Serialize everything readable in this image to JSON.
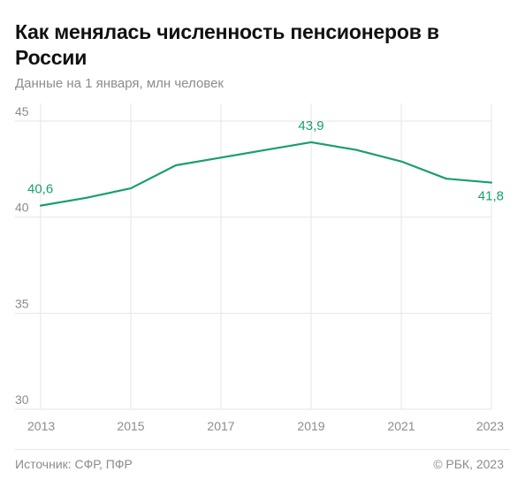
{
  "header": {
    "title": "Как менялась численность пенсионеров в России",
    "subtitle": "Данные на 1 января, млн человек"
  },
  "footer": {
    "source": "Источник: СФР, ПФР",
    "copyright": "© РБК, 2023"
  },
  "colors": {
    "line": "#1a9e6e",
    "grid": "#e6e6e6",
    "axis_text": "#8c8c8c"
  },
  "chart_data": {
    "type": "line",
    "x": [
      2013,
      2014,
      2015,
      2016,
      2017,
      2018,
      2019,
      2020,
      2021,
      2022,
      2023
    ],
    "series": [
      {
        "values": [
          40.6,
          41.0,
          41.5,
          42.7,
          43.1,
          43.5,
          43.9,
          43.5,
          42.9,
          42.0,
          41.8
        ]
      }
    ],
    "annotations": [
      {
        "x": 2013,
        "y": 40.6,
        "text": "40,6"
      },
      {
        "x": 2019,
        "y": 43.9,
        "text": "43,9"
      },
      {
        "x": 2023,
        "y": 41.8,
        "text": "41,8"
      }
    ],
    "x_ticks": [
      "2013",
      "2015",
      "2017",
      "2019",
      "2021",
      "2023"
    ],
    "x_tick_values": [
      2013,
      2015,
      2017,
      2019,
      2021,
      2023
    ],
    "y_ticks": [
      "30",
      "35",
      "40",
      "45"
    ],
    "y_tick_values": [
      30,
      35,
      40,
      45
    ],
    "xlim": [
      2013,
      2023
    ],
    "ylim": [
      30,
      45
    ],
    "grid": true
  }
}
